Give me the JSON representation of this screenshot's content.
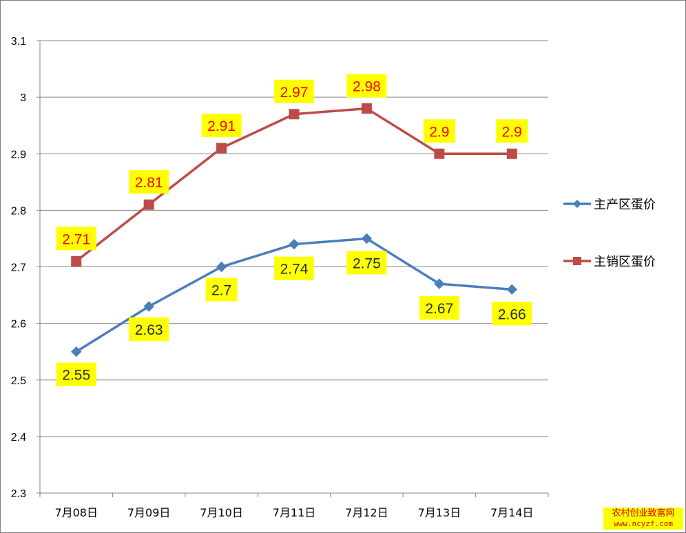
{
  "chart_data": {
    "type": "line",
    "title": "",
    "xlabel": "",
    "ylabel": "",
    "categories": [
      "7月08日",
      "7月09日",
      "7月10日",
      "7月11日",
      "7月12日",
      "7月13日",
      "7月14日"
    ],
    "ylim": [
      2.3,
      3.1
    ],
    "yticks": [
      "2.3",
      "2.4",
      "2.5",
      "2.6",
      "2.7",
      "2.8",
      "2.9",
      "3",
      "3.1"
    ],
    "grid": true,
    "legend_position": "right",
    "series": [
      {
        "name": "主产区蛋价",
        "values": [
          2.55,
          2.63,
          2.7,
          2.74,
          2.75,
          2.67,
          2.66
        ],
        "labels": [
          "2.55",
          "2.63",
          "2.7",
          "2.74",
          "2.75",
          "2.67",
          "2.66"
        ],
        "color": "#4a7ebb",
        "marker": "diamond",
        "label_color": "#1f2d3d"
      },
      {
        "name": "主销区蛋价",
        "values": [
          2.71,
          2.81,
          2.91,
          2.97,
          2.98,
          2.9,
          2.9
        ],
        "labels": [
          "2.71",
          "2.81",
          "2.91",
          "2.97",
          "2.98",
          "2.9",
          "2.9"
        ],
        "color": "#be4b48",
        "marker": "square",
        "label_color": "#ff0000"
      }
    ],
    "data_label_background": "#ffff00"
  },
  "watermark": {
    "line1": "农村创业致富网",
    "line2": "www.ncyzf.com"
  }
}
